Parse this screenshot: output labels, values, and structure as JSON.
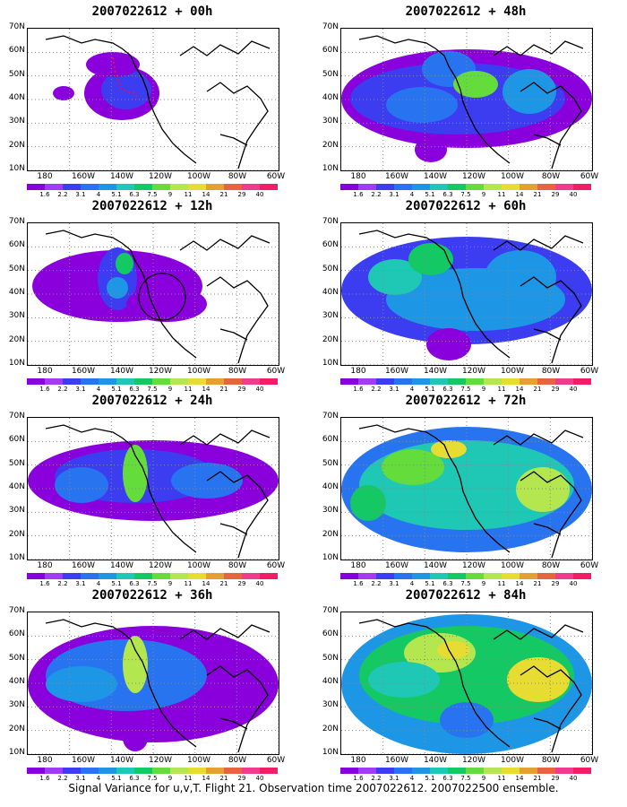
{
  "caption": "Signal Variance for u,v,T. Flight 21. Observation time 2007022612. 2007022500 ensemble.",
  "lat_labels": [
    "70N",
    "60N",
    "50N",
    "40N",
    "30N",
    "20N",
    "10N"
  ],
  "lon_labels": [
    "180",
    "160W",
    "140W",
    "120W",
    "100W",
    "80W",
    "60W"
  ],
  "colorbar": {
    "levels": [
      "1.6",
      "2.2",
      "3.1",
      "4",
      "5.1",
      "6.3",
      "7.5",
      "9",
      "11",
      "14",
      "21",
      "29",
      "40"
    ],
    "colors": [
      "#8a00dc",
      "#a23cf0",
      "#3c3cf0",
      "#2874f0",
      "#1e96e6",
      "#1ec8b4",
      "#14c864",
      "#64dc3c",
      "#b4e650",
      "#e6dc32",
      "#e6a032",
      "#e66440",
      "#f03c8c",
      "#f01e64"
    ]
  },
  "panels": [
    {
      "title": "2007022612 + 00h"
    },
    {
      "title": "2007022612 + 48h"
    },
    {
      "title": "2007022612 + 12h"
    },
    {
      "title": "2007022612 + 60h"
    },
    {
      "title": "2007022612 + 24h"
    },
    {
      "title": "2007022612 + 72h"
    },
    {
      "title": "2007022612 + 36h"
    },
    {
      "title": "2007022612 + 84h"
    }
  ]
}
